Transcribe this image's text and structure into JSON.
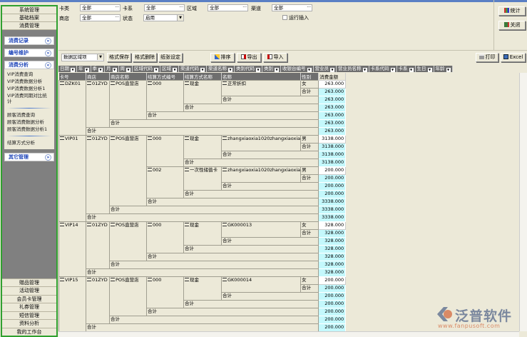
{
  "sidebar": {
    "top": [
      "系统管理",
      "基础档案",
      "消费管理"
    ],
    "groups": [
      {
        "label": "消费记录",
        "chev": "»"
      },
      {
        "label": "编号维护",
        "chev": "»"
      },
      {
        "label": "消费分析",
        "chev": "«",
        "items": [
          "VIP消费查询",
          "VIP消费数据分析",
          "VIP消费数据分析1",
          "VIP消费同期对比统计",
          "顾客消费查询",
          "顾客消费数据分析",
          "顾客消费数据分析1",
          "结算方式分析"
        ]
      },
      {
        "label": "其它管理",
        "chev": "»"
      }
    ],
    "bottom": [
      "赠品管理",
      "活动管理",
      "会员卡管理",
      "礼券管理",
      "短信管理",
      "资料分析",
      "我的工作台"
    ]
  },
  "filters": {
    "card_type": {
      "label": "卡类",
      "value": "全部"
    },
    "card_series": {
      "label": "卡系",
      "value": "全部"
    },
    "region": {
      "label": "区域",
      "value": "全部"
    },
    "channel": {
      "label": "渠道",
      "value": "全部"
    },
    "store": {
      "label": "商店",
      "value": "全部"
    },
    "status": {
      "label": "状态",
      "value": "启用"
    },
    "run_insert": {
      "label": "运行插入",
      "checked": false
    }
  },
  "toolbar": {
    "data_area": "数据区域项",
    "save_format": "格式保存",
    "delete_format": "格式删除",
    "paper_setup": "纸张设定",
    "sort": "排序",
    "export": "导出",
    "import": "导入",
    "print": "打印",
    "excel": "Excel"
  },
  "right_panel": {
    "stats": "统计",
    "close": "关闭"
  },
  "field_chips": [
    "日期",
    "年",
    "季",
    "月",
    "周",
    "区域代码",
    "区域",
    "渠道代码",
    "渠道名称",
    "类别代码",
    "类别",
    "收银台编号",
    "营业员",
    "营业员名称",
    "卡系代码",
    "卡系",
    "生日",
    "年龄"
  ],
  "columns": [
    "卡号",
    "商店",
    "商店名称",
    "结算方式编号",
    "结算方式名称",
    "名称",
    "性别",
    "消费金额"
  ],
  "subtotal_label": "合计",
  "report": [
    {
      "card": "DZK01",
      "store": "01ZYD",
      "store_name": "POS直营店",
      "totals": [
        "263.000",
        "263.000",
        "263.000"
      ],
      "methods": [
        {
          "code": "000",
          "name": "现金",
          "item": "正常折扣",
          "gender": "女",
          "amounts": [
            "263.000",
            "263.000",
            "263.000",
            "263.000"
          ]
        }
      ]
    },
    {
      "card": "VIP01",
      "store": "01ZYD",
      "store_name": "POS直营店",
      "totals": [
        "3338.000",
        "3338.000",
        "3338.000"
      ],
      "methods": [
        {
          "code": "000",
          "name": "现金",
          "item": "zhangxiaoxia1020zhangxiaoxia",
          "gender": "男",
          "amounts": [
            "3138.000",
            "3138.000",
            "3138.000",
            "3138.000"
          ]
        },
        {
          "code": "002",
          "name": "一次性储值卡",
          "item": "zhangxiaoxia1020zhangxiaoxia",
          "gender": "男",
          "amounts": [
            "200.000",
            "200.000",
            "200.000",
            "200.000"
          ]
        }
      ]
    },
    {
      "card": "VIP14",
      "store": "01ZYD",
      "store_name": "POS直营店",
      "totals": [
        "328.000",
        "328.000",
        "328.000"
      ],
      "methods": [
        {
          "code": "000",
          "name": "现金",
          "item": "GK000013",
          "gender": "女",
          "amounts": [
            "328.000",
            "328.000",
            "328.000",
            "328.000"
          ]
        }
      ]
    },
    {
      "card": "VIP15",
      "store": "01ZYD",
      "store_name": "POS直营店",
      "totals": [
        "200.000",
        "200.000",
        "200.000"
      ],
      "methods": [
        {
          "code": "000",
          "name": "现金",
          "item": "GK000014",
          "gender": "女",
          "amounts": [
            "200.000",
            "200.000",
            "200.000",
            "200.000"
          ]
        }
      ]
    }
  ],
  "watermark": {
    "name": "泛普软件",
    "url": "www.fanpusoft.com"
  },
  "colors": {
    "sidebar_border": "#2fa02f",
    "subtotal_bg": "#c4f8fc",
    "header_bg": "#6e6e6e",
    "group_text": "#1c43b8"
  }
}
